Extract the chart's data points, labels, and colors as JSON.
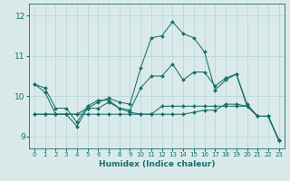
{
  "background_color": "#daeaea",
  "grid_color": "#b8d8d8",
  "line_color": "#1a6e6a",
  "xlabel": "Humidex (Indice chaleur)",
  "xlim": [
    -0.5,
    23.5
  ],
  "ylim": [
    8.7,
    12.3
  ],
  "yticks": [
    9,
    10,
    11,
    12
  ],
  "xticks": [
    0,
    1,
    2,
    3,
    4,
    5,
    6,
    7,
    8,
    9,
    10,
    11,
    12,
    13,
    14,
    15,
    16,
    17,
    18,
    19,
    20,
    21,
    22,
    23
  ],
  "series": [
    [
      10.3,
      10.1,
      9.55,
      9.55,
      9.25,
      9.7,
      9.85,
      9.95,
      9.85,
      9.8,
      10.7,
      11.45,
      11.5,
      11.85,
      11.55,
      11.45,
      11.1,
      10.15,
      10.4,
      10.55,
      9.75,
      9.5,
      9.5,
      8.9
    ],
    [
      10.3,
      10.2,
      9.7,
      9.7,
      9.35,
      9.75,
      9.9,
      9.9,
      9.7,
      9.65,
      10.2,
      10.5,
      10.5,
      10.8,
      10.4,
      10.6,
      10.6,
      10.25,
      10.45,
      10.55,
      9.8,
      9.5,
      9.5,
      8.9
    ],
    [
      9.55,
      9.55,
      9.55,
      9.55,
      9.55,
      9.7,
      9.7,
      9.85,
      9.7,
      9.6,
      9.55,
      9.55,
      9.55,
      9.55,
      9.55,
      9.6,
      9.65,
      9.65,
      9.8,
      9.8,
      9.75,
      9.5,
      9.5,
      8.9
    ],
    [
      9.55,
      9.55,
      9.55,
      9.55,
      9.55,
      9.55,
      9.55,
      9.55,
      9.55,
      9.55,
      9.55,
      9.55,
      9.75,
      9.75,
      9.75,
      9.75,
      9.75,
      9.75,
      9.75,
      9.75,
      9.75,
      9.5,
      9.5,
      8.9
    ]
  ]
}
